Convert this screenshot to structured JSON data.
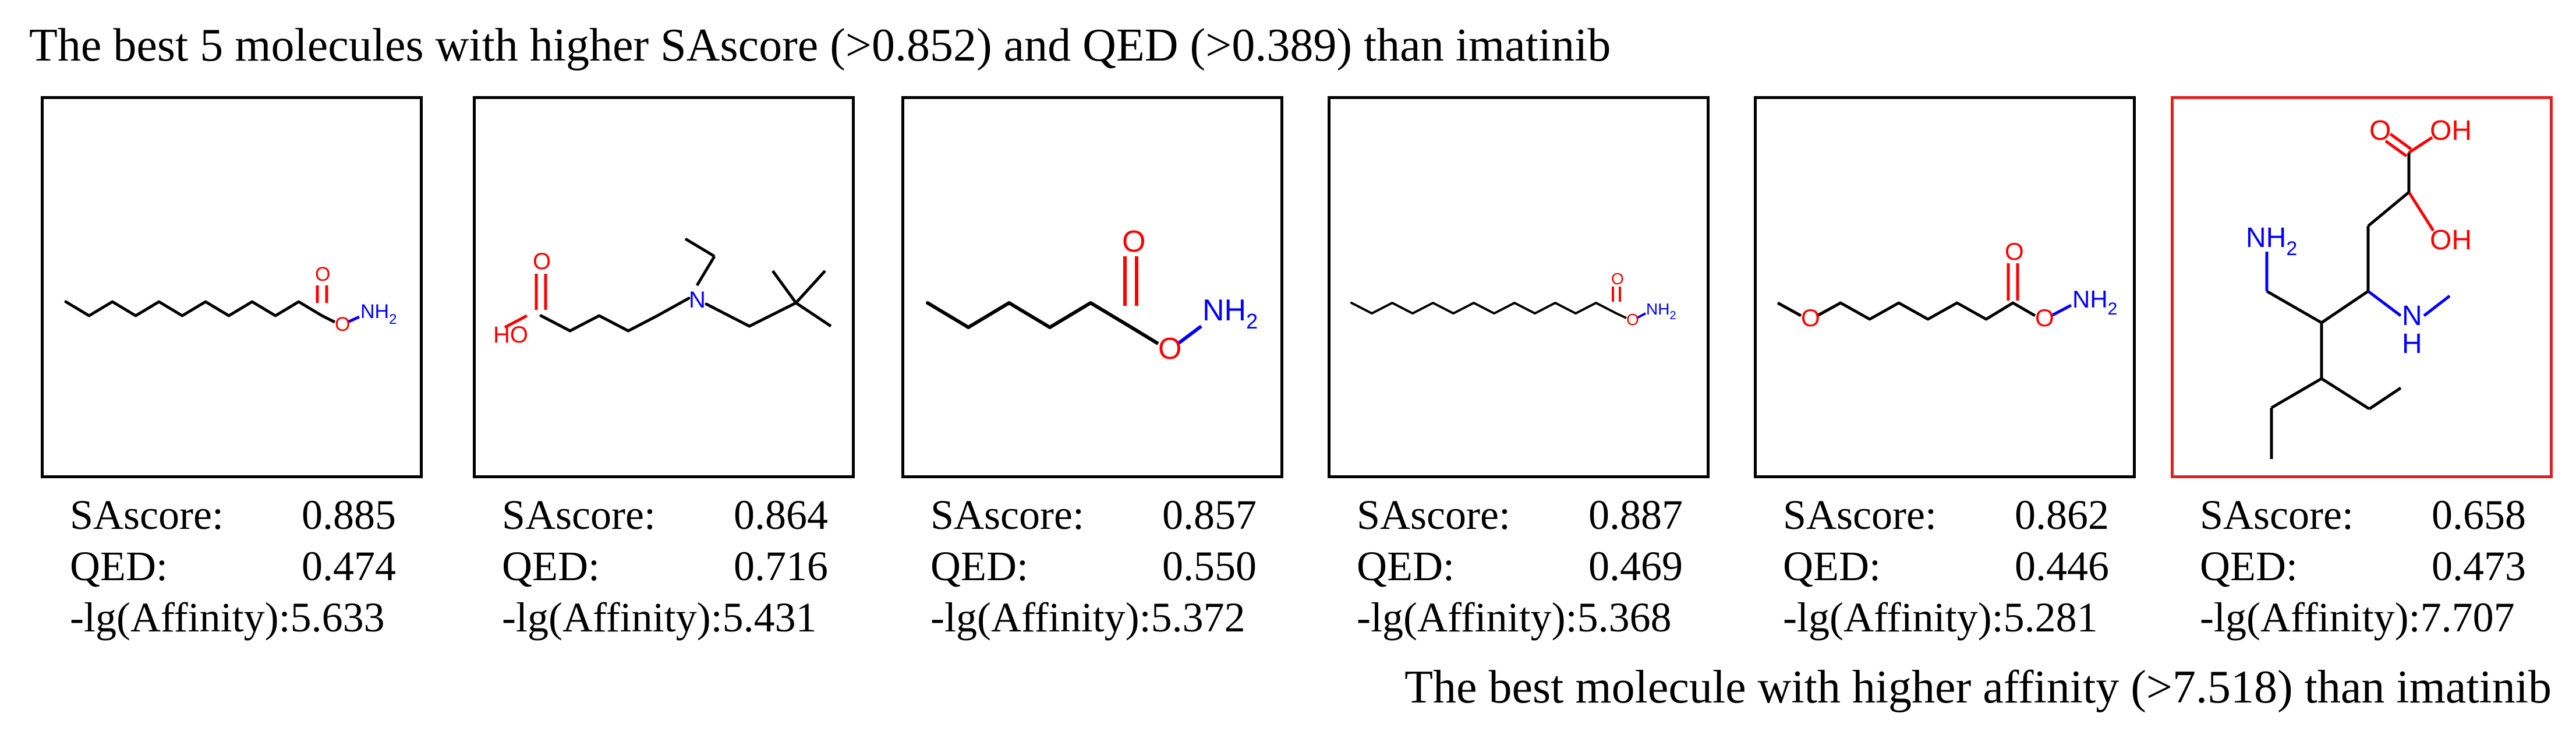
{
  "title_top": "The best 5 molecules with higher SAscore (>0.852) and QED (>0.389) than imatinib",
  "title_bottom": "The best molecule with higher affinity (>7.518) than imatinib",
  "colors": {
    "frame": "#000000",
    "highlight_frame": "#e02020",
    "oxygen": "#ff0000",
    "nitrogen": "#0000ff",
    "carbon_bond": "#000000"
  },
  "molecules": [
    {
      "atoms": {
        "o_carbonyl": "O",
        "o_link": "O",
        "nh2": "NH",
        "nh2_sub": "2"
      },
      "labels": {
        "sascore": "SAscore:",
        "qed": "QED:",
        "affinity": "-lg(Affinity):"
      },
      "values": {
        "sascore": "0.885",
        "qed": "0.474",
        "affinity": "5.633"
      }
    },
    {
      "atoms": {
        "o_carbonyl": "O",
        "ho": "HO",
        "n": "N"
      },
      "labels": {
        "sascore": "SAscore:",
        "qed": "QED:",
        "affinity": "-lg(Affinity):"
      },
      "values": {
        "sascore": "0.864",
        "qed": "0.716",
        "affinity": "5.431"
      }
    },
    {
      "atoms": {
        "o_carbonyl": "O",
        "o_link": "O",
        "nh2": "NH",
        "nh2_sub": "2"
      },
      "labels": {
        "sascore": "SAscore:",
        "qed": "QED:",
        "affinity": "-lg(Affinity):"
      },
      "values": {
        "sascore": "0.857",
        "qed": "0.550",
        "affinity": "5.372"
      }
    },
    {
      "atoms": {
        "o_carbonyl": "O",
        "o_link": "O",
        "nh2": "NH",
        "nh2_sub": "2"
      },
      "labels": {
        "sascore": "SAscore:",
        "qed": "QED:",
        "affinity": "-lg(Affinity):"
      },
      "values": {
        "sascore": "0.887",
        "qed": "0.469",
        "affinity": "5.368"
      }
    },
    {
      "atoms": {
        "o_ether": "O",
        "o_carbonyl": "O",
        "o_link": "O",
        "nh2": "NH",
        "nh2_sub": "2"
      },
      "labels": {
        "sascore": "SAscore:",
        "qed": "QED:",
        "affinity": "-lg(Affinity):"
      },
      "values": {
        "sascore": "0.862",
        "qed": "0.446",
        "affinity": "5.281"
      }
    },
    {
      "atoms": {
        "o_carbonyl": "O",
        "oh_acid": "OH",
        "oh_alcohol": "OH",
        "nh2": "NH",
        "nh2_sub": "2",
        "nh": "N",
        "nh_h": "H"
      },
      "labels": {
        "sascore": "SAscore:",
        "qed": "QED:",
        "affinity": "-lg(Affinity):"
      },
      "values": {
        "sascore": "0.658",
        "qed": "0.473",
        "affinity": "7.707"
      }
    }
  ]
}
